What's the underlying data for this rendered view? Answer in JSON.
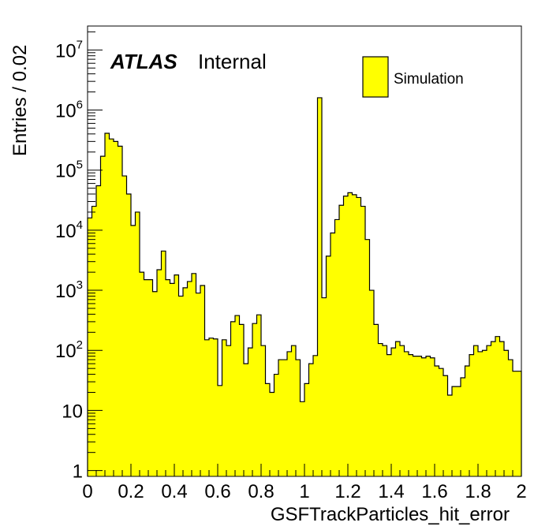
{
  "chart_data": {
    "type": "bar",
    "histogram": true,
    "title": "",
    "xlabel": "GSFTrackParticles_hit_error",
    "ylabel": "Entries / 0.02",
    "xlim": [
      0,
      2
    ],
    "ylim": [
      0.8,
      25000000
    ],
    "yscale": "log",
    "bin_width": 0.02,
    "fill_color": "#ffff00",
    "line_color": "#000000",
    "x_ticks": [
      {
        "v": 0,
        "label": "0"
      },
      {
        "v": 0.2,
        "label": "0.2"
      },
      {
        "v": 0.4,
        "label": "0.4"
      },
      {
        "v": 0.6,
        "label": "0.6"
      },
      {
        "v": 0.8,
        "label": "0.8"
      },
      {
        "v": 1,
        "label": "1"
      },
      {
        "v": 1.2,
        "label": "1.2"
      },
      {
        "v": 1.4,
        "label": "1.4"
      },
      {
        "v": 1.6,
        "label": "1.6"
      },
      {
        "v": 1.8,
        "label": "1.8"
      },
      {
        "v": 2,
        "label": "2"
      }
    ],
    "y_ticks": [
      {
        "v": 1,
        "base": "1",
        "exp": ""
      },
      {
        "v": 10,
        "base": "10",
        "exp": ""
      },
      {
        "v": 100,
        "base": "10",
        "exp": "2"
      },
      {
        "v": 1000,
        "base": "10",
        "exp": "3"
      },
      {
        "v": 10000,
        "base": "10",
        "exp": "4"
      },
      {
        "v": 100000,
        "base": "10",
        "exp": "5"
      },
      {
        "v": 1000000,
        "base": "10",
        "exp": "6"
      },
      {
        "v": 10000000,
        "base": "10",
        "exp": "7"
      }
    ],
    "series": [
      {
        "name": "Simulation",
        "values": [
          16000,
          25000,
          55000,
          170000,
          410000,
          330000,
          300000,
          250000,
          80000,
          40000,
          12000,
          20000,
          2000,
          1500,
          1500,
          950,
          2200,
          4500,
          1500,
          1300,
          1800,
          800,
          1100,
          1400,
          1900,
          900,
          1200,
          150,
          160,
          155,
          26,
          150,
          120,
          300,
          380,
          270,
          60,
          110,
          280,
          390,
          120,
          28,
          20,
          40,
          70,
          70,
          95,
          120,
          70,
          14,
          28,
          60,
          82,
          1600000,
          750,
          3700,
          9000,
          15000,
          26000,
          37000,
          42000,
          39000,
          35000,
          25000,
          7000,
          1000,
          270,
          130,
          120,
          85,
          110,
          140,
          120,
          95,
          85,
          80,
          80,
          75,
          80,
          75,
          55,
          50,
          38,
          18,
          25,
          25,
          35,
          55,
          85,
          120,
          95,
          100,
          120,
          140,
          170,
          140,
          100,
          70,
          45,
          45
        ]
      }
    ],
    "legend": {
      "position": "top-right",
      "entries": [
        "Simulation"
      ]
    },
    "annotations": {
      "atlas": "ATLAS",
      "status": "Internal"
    }
  }
}
